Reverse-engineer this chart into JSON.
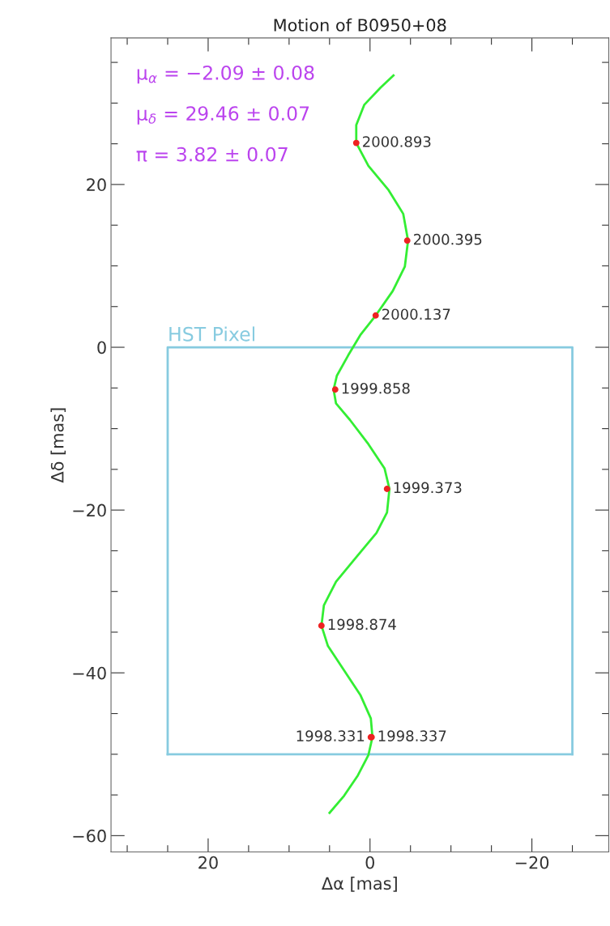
{
  "chart_data": {
    "type": "scatter",
    "title": "Motion of B0950+08",
    "xlabel": "Δα [mas]",
    "ylabel": "Δδ [mas]",
    "xlim": [
      32,
      -29.5
    ],
    "ylim": [
      -62,
      38
    ],
    "xticks": [
      {
        "value": 30,
        "label": null
      },
      {
        "value": 25,
        "label": null
      },
      20,
      {
        "value": 15,
        "label": null
      },
      {
        "value": 10,
        "label": null
      },
      {
        "value": 5,
        "label": null
      },
      0,
      {
        "value": -5,
        "label": null
      },
      {
        "value": -10,
        "label": null
      },
      {
        "value": -15,
        "label": null
      },
      {
        "value": -20,
        "label": "−20"
      },
      {
        "value": -25,
        "label": null
      }
    ],
    "yticks": [
      {
        "value": 35,
        "label": null
      },
      {
        "value": 30,
        "label": null
      },
      {
        "value": 25,
        "label": null
      },
      20,
      {
        "value": 15,
        "label": null
      },
      {
        "value": 10,
        "label": null
      },
      {
        "value": 5,
        "label": null
      },
      0,
      {
        "value": -5,
        "label": null
      },
      {
        "value": -10,
        "label": null
      },
      {
        "value": -15,
        "label": null
      },
      {
        "value": -20,
        "label": "−20"
      },
      {
        "value": -25,
        "label": null
      },
      {
        "value": -30,
        "label": null
      },
      {
        "value": -35,
        "label": null
      },
      {
        "value": -40,
        "label": "−40"
      },
      {
        "value": -45,
        "label": null
      },
      {
        "value": -50,
        "label": null
      },
      {
        "value": -55,
        "label": null
      },
      {
        "value": -60,
        "label": "−60"
      }
    ],
    "grid": false,
    "series": [
      {
        "type": "line",
        "color": "#87cbe0",
        "x": [
          25,
          25,
          -25,
          -25
        ],
        "values": [
          -50,
          0,
          0,
          -50
        ]
      },
      {
        "type": "line",
        "color": "#87cbe0",
        "x": [
          25,
          -25
        ],
        "values": [
          -50,
          -50
        ]
      },
      {
        "type": "line",
        "color": "#33ee33",
        "x": [
          5.0,
          3.2,
          1.5,
          0.2,
          -0.3,
          -0.1,
          1.2,
          3.2,
          5.2,
          6.0,
          5.7,
          4.2,
          1.7,
          -0.8,
          -2.1,
          -2.4,
          -1.8,
          0.2,
          2.5,
          4.2,
          4.5,
          4.1,
          2.7,
          1.2,
          -0.7,
          -2.8,
          -4.3,
          -4.7,
          -4.1,
          -2.3,
          0.2,
          1.7,
          1.7,
          0.7,
          -1.3,
          -2.9
        ],
        "values": [
          -57.2,
          -55.1,
          -52.6,
          -50.1,
          -47.9,
          -45.6,
          -42.7,
          -39.7,
          -36.7,
          -34.2,
          -31.7,
          -28.8,
          -25.8,
          -22.8,
          -20.3,
          -17.4,
          -14.9,
          -11.9,
          -8.9,
          -6.9,
          -5.2,
          -3.5,
          -1.0,
          1.5,
          3.9,
          6.9,
          9.9,
          13.1,
          16.4,
          19.3,
          22.3,
          25.1,
          27.3,
          29.8,
          31.9,
          33.4
        ]
      },
      {
        "color": "#ee2222",
        "marker": "circle",
        "x": [
          -0.1,
          -0.2,
          6.0,
          -2.1,
          4.3,
          -0.7,
          -4.6,
          1.7
        ],
        "values": [
          -47.9,
          -47.9,
          -34.2,
          -17.4,
          -5.2,
          3.9,
          13.1,
          25.1
        ]
      }
    ],
    "annotations": [
      {
        "text": "HST Pixel",
        "x": 25,
        "y": 0
      },
      {
        "text": "1998.331",
        "x": -0.1,
        "y": -47.9
      },
      {
        "text": "1998.337",
        "x": -0.2,
        "y": -47.9
      },
      {
        "text": "1998.874",
        "x": 6.0,
        "y": -34.2
      },
      {
        "text": "1999.373",
        "x": -2.1,
        "y": -17.4
      },
      {
        "text": "1999.858",
        "x": 4.3,
        "y": -5.2
      },
      {
        "text": "2000.137",
        "x": -0.7,
        "y": 3.9
      },
      {
        "text": "2000.395",
        "x": -4.6,
        "y": 13.1
      },
      {
        "text": "2000.893",
        "x": 1.7,
        "y": 25.1
      },
      "μ$_{α}$ = −2.09 ± 0.08",
      "μ$_{δ}$ = 29.46 ± 0.07",
      "π = 3.82 ± 0.07"
    ]
  }
}
